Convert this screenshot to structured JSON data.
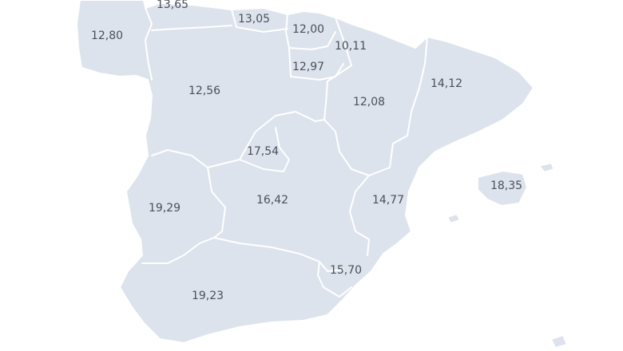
{
  "map": {
    "land_color": "#dde3ec",
    "border_color": "#ffffff",
    "label_color": "#4a4f5a",
    "regions": [
      {
        "id": "asturias",
        "value": "13,65"
      },
      {
        "id": "galicia",
        "value": "12,80"
      },
      {
        "id": "cantabria",
        "value": "13,05"
      },
      {
        "id": "pais-vasco",
        "value": "12,00"
      },
      {
        "id": "navarra",
        "value": "10,11"
      },
      {
        "id": "la-rioja",
        "value": "12,97"
      },
      {
        "id": "castilla-y-leon",
        "value": "12,56"
      },
      {
        "id": "aragon",
        "value": "12,08"
      },
      {
        "id": "cataluna",
        "value": "14,12"
      },
      {
        "id": "madrid",
        "value": "17,54"
      },
      {
        "id": "baleares",
        "value": "18,35"
      },
      {
        "id": "extremadura",
        "value": "19,29"
      },
      {
        "id": "castilla-la-mancha",
        "value": "16,42"
      },
      {
        "id": "valencia",
        "value": "14,77"
      },
      {
        "id": "murcia",
        "value": "15,70"
      },
      {
        "id": "andalucia",
        "value": "19,23"
      }
    ]
  }
}
